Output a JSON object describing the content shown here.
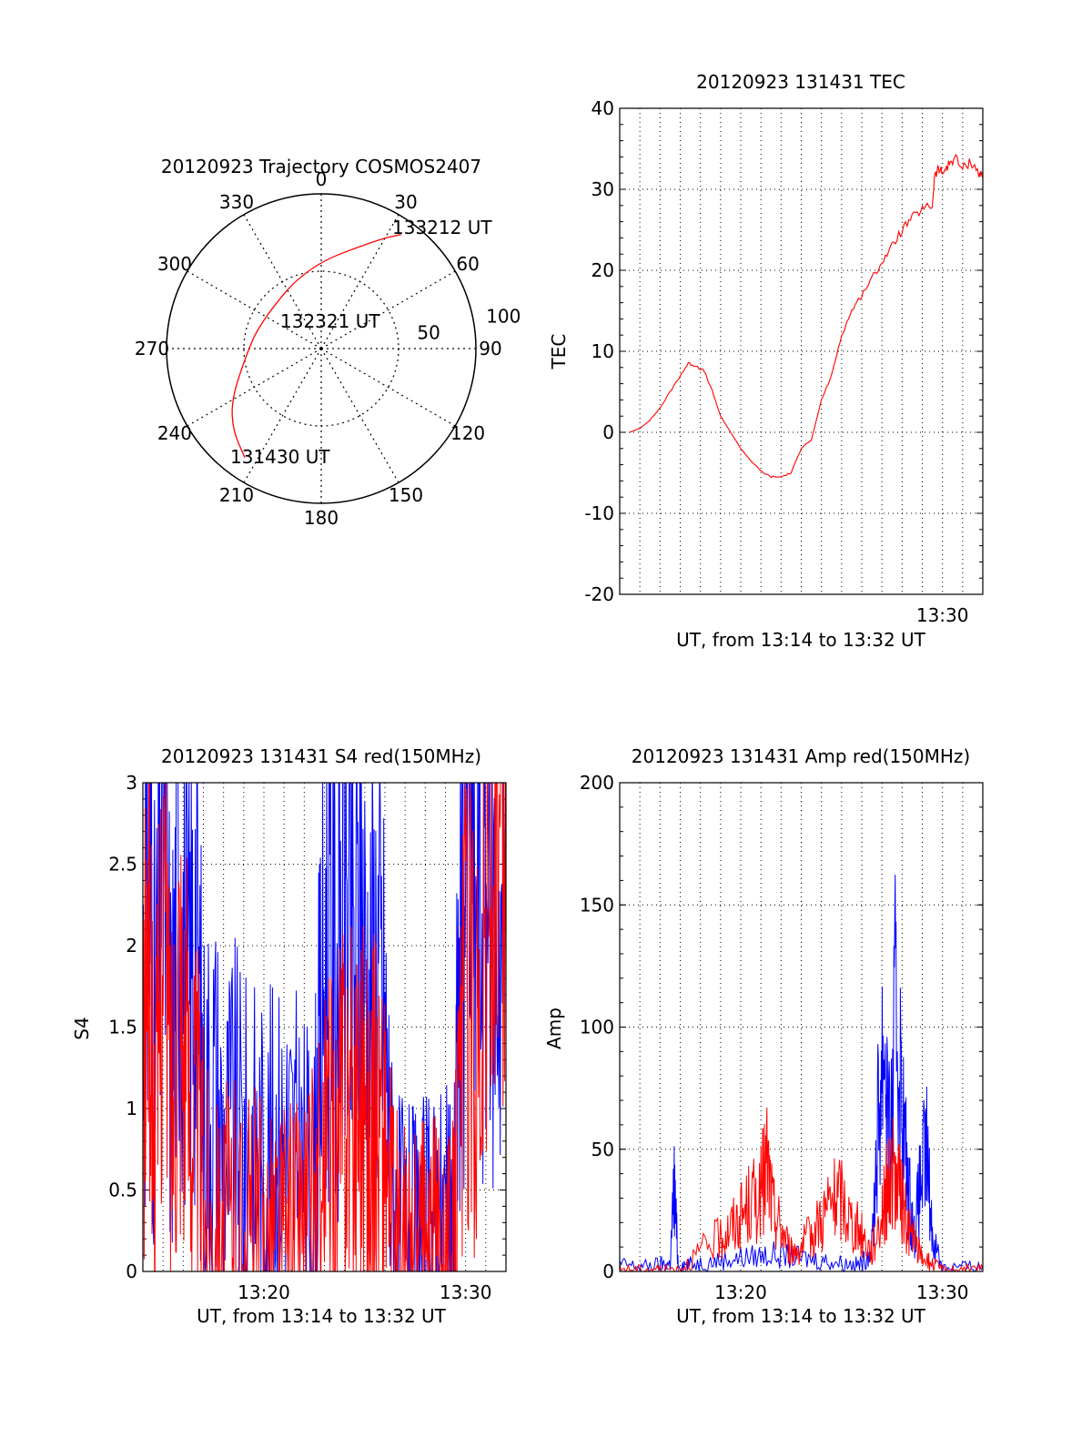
{
  "chart_data": [
    {
      "type": "polar",
      "title": "20120923 Trajectory COSMOS2407",
      "azimuth_labels": [
        "0",
        "30",
        "60",
        "90",
        "120",
        "150",
        "180",
        "210",
        "240",
        "270",
        "300",
        "330"
      ],
      "zenith_labels": [
        "50",
        "100"
      ],
      "rlim": [
        0,
        100
      ],
      "series": [
        {
          "color": "#ff0000",
          "points": [
            {
              "az": 215,
              "zen": 86
            },
            {
              "az": 227,
              "zen": 78
            },
            {
              "az": 240,
              "zen": 67
            },
            {
              "az": 262,
              "zen": 50
            },
            {
              "az": 292,
              "zen": 43
            },
            {
              "az": 350,
              "zen": 54
            },
            {
              "az": 28,
              "zen": 80
            },
            {
              "az": 35,
              "zen": 90
            }
          ]
        }
      ],
      "annotations": [
        "133212 UT",
        "132321 UT",
        "131430 UT"
      ]
    },
    {
      "type": "line",
      "title": "20120923 131431 TEC",
      "xlabel": "UT, from 13:14 to 13:32 UT",
      "ylabel": "TEC",
      "xlim": [
        0,
        18
      ],
      "ylim": [
        -20,
        40
      ],
      "yticks": [
        "-20",
        "-10",
        "0",
        "10",
        "20",
        "30",
        "40"
      ],
      "xticks": [
        "13:30"
      ],
      "grid": true,
      "series": [
        {
          "color": "#ff0000",
          "t": [
            0.5,
            1.0,
            1.5,
            2.0,
            2.5,
            3.0,
            3.4,
            3.8,
            4.2,
            4.6,
            5.0,
            5.5,
            6.0,
            6.5,
            7.0,
            7.5,
            8.0,
            8.5,
            9.0,
            9.2,
            9.5,
            10.0,
            10.5,
            11.0,
            11.5,
            12.0,
            12.5,
            13.0,
            13.5,
            14.0,
            14.5,
            15.0,
            15.5,
            15.6,
            15.8,
            16.0,
            16.3,
            16.6,
            17.0,
            17.4,
            17.8,
            18.0
          ],
          "values": [
            0,
            0.5,
            1.5,
            3.0,
            5.0,
            7.0,
            8.5,
            8.2,
            7.5,
            5.0,
            2.0,
            0.0,
            -2.0,
            -3.5,
            -4.8,
            -5.5,
            -5.5,
            -5.0,
            -2.0,
            -1.5,
            -1.0,
            4.0,
            7.0,
            12.0,
            15.0,
            17.0,
            19.0,
            21.0,
            23.0,
            25.0,
            26.5,
            27.5,
            28.0,
            31.5,
            32.5,
            32.0,
            33.0,
            34.0,
            32.5,
            33.5,
            32.0,
            31.5
          ]
        }
      ]
    },
    {
      "type": "line",
      "title": "20120923 131431 S4 red(150MHz)",
      "xlabel": "UT, from 13:14 to 13:32 UT",
      "ylabel": "S4",
      "xlim": [
        0,
        18
      ],
      "ylim": [
        0,
        3
      ],
      "yticks": [
        "0",
        "0.5",
        "1",
        "1.5",
        "2",
        "2.5",
        "3"
      ],
      "xticks": [
        "13:20",
        "13:30"
      ],
      "grid": true,
      "series": [
        {
          "color": "#0000ff",
          "t": [
            0.0,
            0.3,
            0.6,
            1.0,
            1.4,
            1.8,
            2.2,
            2.6,
            3.0,
            3.5,
            4.0,
            4.5,
            5.0,
            5.5,
            6.0,
            6.5,
            7.0,
            7.5,
            8.0,
            8.5,
            8.8,
            9.2,
            9.6,
            10.0,
            10.4,
            10.8,
            11.2,
            11.6,
            12.0,
            12.4,
            12.8,
            13.2,
            13.6,
            14.0,
            14.4,
            14.8,
            15.2,
            15.4,
            15.6,
            16.0,
            16.5,
            17.0,
            17.5,
            18.0
          ],
          "values": [
            1.8,
            2.5,
            1.4,
            2.8,
            1.3,
            2.6,
            1.6,
            2.2,
            1.0,
            1.2,
            0.75,
            0.9,
            0.7,
            0.75,
            0.65,
            0.7,
            0.8,
            0.7,
            0.55,
            0.5,
            1.4,
            2.2,
            1.8,
            2.4,
            1.7,
            2.3,
            1.6,
            2.0,
            1.5,
            0.3,
            0.2,
            0.15,
            0.15,
            0.2,
            0.25,
            0.3,
            0.2,
            0.15,
            1.5,
            2.6,
            2.2,
            2.4,
            2.1,
            2.3
          ]
        },
        {
          "color": "#ff0000",
          "t": [
            0.0,
            0.3,
            0.6,
            1.0,
            1.4,
            1.8,
            2.2,
            2.6,
            3.0,
            3.5,
            4.0,
            4.5,
            5.0,
            5.5,
            6.0,
            6.5,
            7.0,
            7.5,
            8.0,
            8.5,
            8.8,
            9.2,
            9.6,
            10.0,
            10.4,
            10.8,
            11.2,
            11.6,
            12.0,
            12.4,
            12.8,
            13.2,
            13.6,
            14.0,
            14.4,
            14.8,
            15.2,
            15.4,
            15.6,
            16.0,
            16.5,
            17.0,
            17.5,
            18.0
          ],
          "values": [
            1.0,
            2.2,
            0.6,
            2.4,
            1.0,
            2.0,
            1.2,
            1.0,
            0.5,
            0.3,
            0.25,
            0.3,
            0.2,
            0.25,
            0.2,
            0.25,
            0.2,
            0.25,
            0.3,
            0.35,
            0.5,
            0.8,
            0.6,
            1.2,
            0.9,
            1.3,
            0.7,
            1.0,
            0.8,
            0.15,
            0.1,
            0.08,
            0.08,
            0.1,
            0.12,
            0.15,
            0.12,
            0.1,
            0.7,
            1.8,
            1.5,
            2.0,
            2.2,
            2.0
          ]
        }
      ]
    },
    {
      "type": "line",
      "title": "20120923 131431 Amp red(150MHz)",
      "xlabel": "UT, from 13:14 to 13:32 UT",
      "ylabel": "Amp",
      "xlim": [
        0,
        18
      ],
      "ylim": [
        0,
        200
      ],
      "yticks": [
        "0",
        "50",
        "100",
        "150",
        "200"
      ],
      "xticks": [
        "13:20",
        "13:30"
      ],
      "grid": true,
      "series": [
        {
          "color": "#0000ff",
          "t": [
            0.0,
            1.0,
            2.0,
            2.5,
            2.7,
            2.9,
            3.5,
            4.5,
            5.5,
            6.5,
            7.5,
            8.5,
            9.5,
            10.5,
            11.5,
            12.0,
            12.5,
            12.8,
            13.1,
            13.4,
            13.7,
            14.0,
            14.3,
            14.6,
            14.9,
            15.2,
            15.5,
            16.0,
            17.0,
            18.0
          ],
          "values": [
            3,
            2,
            3,
            3,
            35,
            3,
            3,
            4,
            5,
            6,
            7,
            6,
            5,
            4,
            3,
            3,
            10,
            60,
            100,
            45,
            110,
            65,
            35,
            15,
            35,
            50,
            15,
            2,
            2,
            2
          ]
        },
        {
          "color": "#ff0000",
          "t": [
            0.0,
            1.0,
            2.0,
            3.0,
            4.0,
            5.0,
            5.5,
            6.0,
            6.5,
            7.0,
            7.3,
            7.6,
            8.0,
            8.5,
            9.0,
            9.5,
            10.0,
            10.5,
            11.0,
            11.5,
            12.0,
            12.5,
            13.0,
            13.3,
            13.6,
            14.0,
            14.3,
            14.6,
            15.0,
            15.5,
            16.0,
            17.0,
            18.0
          ],
          "values": [
            1,
            1,
            1,
            1,
            8,
            14,
            18,
            22,
            28,
            32,
            45,
            25,
            18,
            8,
            10,
            15,
            22,
            28,
            30,
            20,
            15,
            8,
            25,
            35,
            40,
            28,
            18,
            12,
            6,
            3,
            1,
            1,
            1
          ]
        }
      ]
    }
  ]
}
